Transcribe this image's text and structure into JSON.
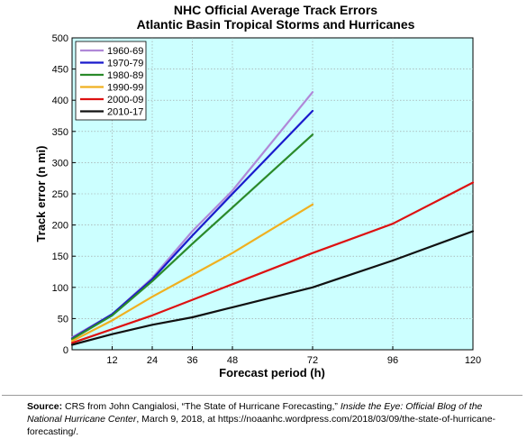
{
  "chart_data": {
    "type": "line",
    "title": "NHC Official Average Track Errors",
    "subtitle": "Atlantic Basin Tropical Storms and Hurricanes",
    "xlabel": "Forecast period (h)",
    "ylabel": "Track error (n mi)",
    "xlim": [
      0,
      120
    ],
    "ylim": [
      0,
      500
    ],
    "x_ticks": [
      12,
      24,
      36,
      48,
      72,
      96,
      120
    ],
    "y_ticks": [
      0,
      50,
      100,
      150,
      200,
      250,
      300,
      350,
      400,
      450,
      500
    ],
    "grid": true,
    "background_color": "#ccffff",
    "legend_position": "top-left",
    "series": [
      {
        "name": "1960-69",
        "color": "#b088d8",
        "x": [
          0,
          12,
          24,
          36,
          48,
          72
        ],
        "y": [
          20,
          57,
          115,
          190,
          255,
          413
        ]
      },
      {
        "name": "1970-79",
        "color": "#1a1acc",
        "x": [
          0,
          12,
          24,
          36,
          48,
          72
        ],
        "y": [
          18,
          57,
          113,
          183,
          250,
          383
        ]
      },
      {
        "name": "1980-89",
        "color": "#2a8a2a",
        "x": [
          0,
          12,
          24,
          36,
          48,
          72
        ],
        "y": [
          17,
          55,
          110,
          170,
          228,
          345
        ]
      },
      {
        "name": "1990-99",
        "color": "#f0b020",
        "x": [
          0,
          12,
          24,
          36,
          48,
          72
        ],
        "y": [
          14,
          47,
          85,
          120,
          155,
          233
        ]
      },
      {
        "name": "2000-09",
        "color": "#dd1111",
        "x": [
          0,
          12,
          24,
          36,
          48,
          72,
          96,
          120
        ],
        "y": [
          11,
          33,
          55,
          80,
          105,
          155,
          202,
          268
        ]
      },
      {
        "name": "2010-17",
        "color": "#111111",
        "x": [
          0,
          12,
          24,
          36,
          48,
          72,
          96,
          120
        ],
        "y": [
          8,
          25,
          40,
          52,
          68,
          100,
          143,
          190
        ]
      }
    ]
  },
  "source": {
    "label": "Source:",
    "text_1": " CRS from John Cangialosi, “The State of Hurricane Forecasting,” ",
    "italic": "Inside the Eye: Official Blog of the National Hurricane Center",
    "text_2": ", March 9, 2018, at https://noaanhc.wordpress.com/2018/03/09/the-state-of-hurricane-forecasting/."
  }
}
